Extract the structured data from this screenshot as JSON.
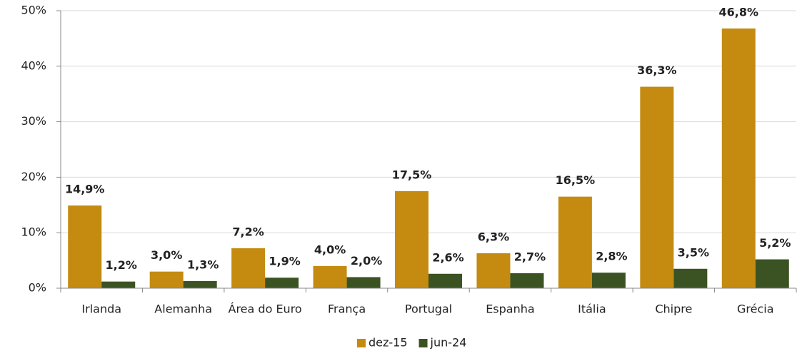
{
  "chart_data": {
    "type": "bar",
    "categories": [
      "Irlanda",
      "Alemanha",
      "Área do Euro",
      "França",
      "Portugal",
      "Espanha",
      "Itália",
      "Chipre",
      "Grécia"
    ],
    "series": [
      {
        "name": "dez-15",
        "color": "#c48b10",
        "label_color": "#c8901a",
        "values": [
          14.9,
          3.0,
          7.2,
          4.0,
          17.5,
          6.3,
          16.5,
          36.3,
          46.8
        ],
        "value_labels": [
          "14,9%",
          "3,0%",
          "7,2%",
          "4,0%",
          "17,5%",
          "6,3%",
          "16,5%",
          "36,3%",
          "46,8%"
        ]
      },
      {
        "name": "jun-24",
        "color": "#3b5323",
        "label_color": "#2f4420",
        "values": [
          1.2,
          1.3,
          1.9,
          2.0,
          2.6,
          2.7,
          2.8,
          3.5,
          5.2
        ],
        "value_labels": [
          "1,2%",
          "1,3%",
          "1,9%",
          "2,0%",
          "2,6%",
          "2,7%",
          "2,8%",
          "3,5%",
          "5,2%"
        ]
      }
    ],
    "ylim": [
      0,
      50
    ],
    "yticks": [
      {
        "value": 0,
        "label": "0%"
      },
      {
        "value": 10,
        "label": "10%"
      },
      {
        "value": 20,
        "label": "20%"
      },
      {
        "value": 30,
        "label": "30%"
      },
      {
        "value": 40,
        "label": "40%"
      },
      {
        "value": 50,
        "label": "50%"
      }
    ],
    "grid": true,
    "legend": "bottom"
  }
}
